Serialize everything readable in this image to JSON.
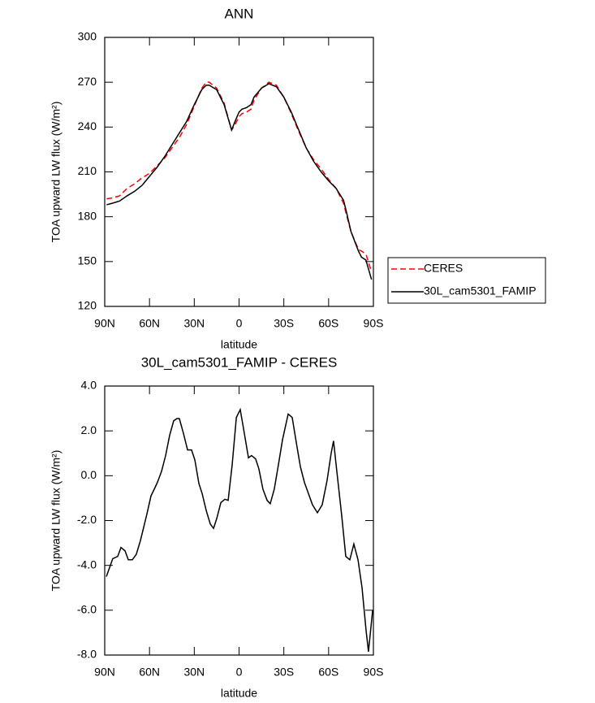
{
  "chart_data": [
    {
      "type": "line",
      "title": "ANN",
      "xlabel": "latitude",
      "ylabel": "TOA upward LW flux (W/m²)",
      "x": [
        88.75,
        85,
        80,
        75,
        70,
        65,
        60,
        55,
        50,
        45,
        40,
        35,
        30,
        25,
        22,
        20,
        15,
        10,
        5,
        3,
        0,
        -2,
        -5,
        -8,
        -10,
        -15,
        -20,
        -25,
        -30,
        -35,
        -40,
        -45,
        -50,
        -55,
        -60,
        -65,
        -70,
        -72,
        -75,
        -80,
        -82,
        -85,
        -88.75
      ],
      "series": [
        {
          "name": "CERES",
          "color": "#ff0000",
          "dashed": true,
          "values": [
            192,
            192.5,
            194,
            199,
            202,
            206,
            209,
            214,
            219,
            226,
            233,
            242,
            254,
            266,
            270,
            270,
            266,
            256,
            238,
            241,
            247,
            249,
            250,
            252,
            258,
            266,
            270,
            268,
            260,
            249,
            237,
            226,
            218,
            212,
            205,
            199,
            189,
            181,
            170,
            158,
            157,
            155,
            143
          ]
        },
        {
          "name": "30L_cam5301_FAMIP",
          "color": "#000000",
          "dashed": false,
          "values": [
            188,
            189,
            190.5,
            194,
            197,
            201,
            207,
            213,
            220,
            228,
            236,
            244,
            255,
            265,
            268,
            268,
            265,
            255,
            238,
            243,
            250,
            252,
            253,
            255,
            260,
            266,
            269,
            267,
            260,
            250,
            238,
            226,
            217,
            210,
            204,
            199,
            191,
            183,
            170,
            157,
            153,
            151,
            138
          ]
        }
      ],
      "xlim": [
        90,
        -90
      ],
      "xticks": [
        {
          "value": 90,
          "label": "90N"
        },
        {
          "value": 60,
          "label": "60N"
        },
        {
          "value": 30,
          "label": "30N"
        },
        0,
        {
          "value": -30,
          "label": "30S"
        },
        {
          "value": -60,
          "label": "60S"
        },
        {
          "value": -90,
          "label": "90S"
        }
      ],
      "ylim": [
        120,
        300
      ],
      "yticks": [
        120,
        150,
        180,
        210,
        240,
        270,
        300
      ],
      "legend": "right"
    },
    {
      "type": "line",
      "title": "30L_cam5301_FAMIP - CERES",
      "xlabel": "latitude",
      "ylabel": "TOA upward LW flux (W/m²)",
      "x": [
        88.9,
        84.6,
        81.3,
        79.1,
        76.4,
        74.2,
        71.5,
        68.8,
        66.1,
        63.9,
        61.7,
        59,
        56.8,
        54.7,
        51.9,
        49.2,
        46.5,
        43.8,
        41.6,
        40,
        37.3,
        34.5,
        31.8,
        29.6,
        26.9,
        24.7,
        22,
        19.3,
        17.1,
        14.9,
        12.2,
        9.5,
        7.3,
        4.6,
        1.8,
        -0.8,
        -3.5,
        -6.3,
        -8.4,
        -11.1,
        -13.3,
        -16,
        -18.8,
        -20.9,
        -23.6,
        -26.4,
        -29.1,
        -32.9,
        -35.6,
        -38.3,
        -41.1,
        -43.8,
        -46.5,
        -49.2,
        -52.5,
        -55.7,
        -59,
        -61.7,
        -63.3,
        -65.5,
        -68.8,
        -71.5,
        -74.2,
        -76.9,
        -79.7,
        -82.4,
        -85.1,
        -86.7,
        -89.5
      ],
      "values": [
        -4.5,
        -3.7,
        -3.6,
        -3.2,
        -3.35,
        -3.75,
        -3.75,
        -3.5,
        -2.9,
        -2.3,
        -1.7,
        -0.9,
        -0.6,
        -0.3,
        0.2,
        0.9,
        1.8,
        2.45,
        2.55,
        2.55,
        1.9,
        1.15,
        1.15,
        0.7,
        -0.35,
        -0.8,
        -1.55,
        -2.15,
        -2.35,
        -1.9,
        -1.2,
        -1.05,
        -1.1,
        0.5,
        2.6,
        2.95,
        1.9,
        0.8,
        0.9,
        0.75,
        0.3,
        -0.6,
        -1.1,
        -1.25,
        -0.6,
        0.5,
        1.6,
        2.75,
        2.6,
        1.5,
        0.4,
        -0.3,
        -0.8,
        -1.3,
        -1.65,
        -1.3,
        -0.2,
        1.0,
        1.55,
        0.2,
        -1.8,
        -3.6,
        -3.75,
        -3.05,
        -3.75,
        -5.0,
        -6.9,
        -7.85,
        -6.0
      ],
      "color": "#000000",
      "xlim": [
        90,
        -90
      ],
      "xticks": [
        {
          "value": 90,
          "label": "90N"
        },
        {
          "value": 60,
          "label": "60N"
        },
        {
          "value": 30,
          "label": "30N"
        },
        0,
        {
          "value": -30,
          "label": "30S"
        },
        {
          "value": -60,
          "label": "60S"
        },
        {
          "value": -90,
          "label": "90S"
        }
      ],
      "ylim": [
        -8,
        4
      ],
      "yticks": [
        {
          "value": -8,
          "label": "-8.0"
        },
        {
          "value": -6,
          "label": "-6.0"
        },
        {
          "value": -4,
          "label": "-4.0"
        },
        {
          "value": -2,
          "label": "-2.0"
        },
        {
          "value": 0,
          "label": "0.0"
        },
        {
          "value": 2,
          "label": "2.0"
        },
        {
          "value": 4,
          "label": "4.0"
        }
      ]
    }
  ]
}
